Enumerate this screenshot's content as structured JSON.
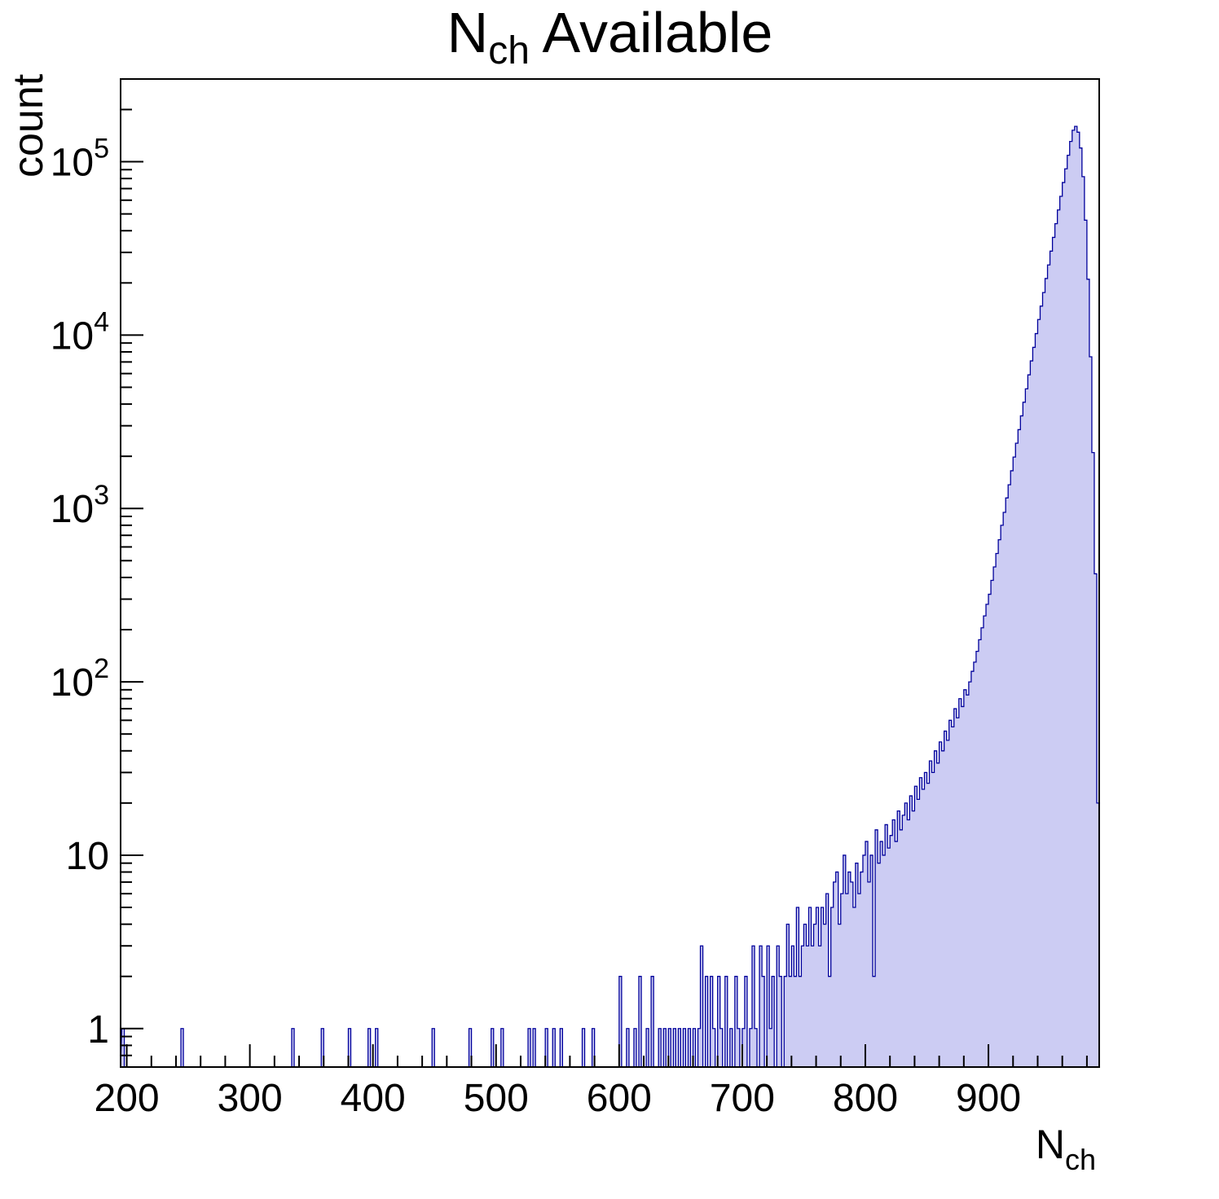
{
  "title": {
    "pre": "N",
    "sub": "ch",
    "post": " Available",
    "text": "N_ch Available"
  },
  "axes": {
    "x": {
      "label_pre": "N",
      "label_sub": "ch",
      "min": 195,
      "max": 990,
      "major_tick_values": [
        200,
        300,
        400,
        500,
        600,
        700,
        800,
        900
      ],
      "major_tick_labels": [
        "200",
        "300",
        "400",
        "500",
        "600",
        "700",
        "800",
        "900"
      ],
      "minor_step": 20
    },
    "y": {
      "label": "count",
      "scale": "log",
      "min": 0.6,
      "max": 300000,
      "major_ticks": [
        {
          "value": 1,
          "label": "1",
          "exp": null
        },
        {
          "value": 10,
          "label": "10",
          "exp": null
        },
        {
          "value": 100,
          "label": "10",
          "exp": "2"
        },
        {
          "value": 1000,
          "label": "10",
          "exp": "3"
        },
        {
          "value": 10000,
          "label": "10",
          "exp": "4"
        },
        {
          "value": 100000,
          "label": "10",
          "exp": "5"
        }
      ]
    }
  },
  "style": {
    "fill_color": "#ccccf3",
    "line_color": "#00009b",
    "frame_color": "#000000",
    "background": "#ffffff"
  },
  "chart_data": {
    "type": "bar",
    "subtype": "histogram",
    "title": "N_ch Available",
    "xlabel": "N_ch",
    "ylabel": "count",
    "yscale": "log",
    "xlim": [
      195,
      990
    ],
    "ylim": [
      0.6,
      300000
    ],
    "grid": false,
    "legend": "none",
    "bin_width": 2,
    "peak": {
      "x": 970,
      "count": 160000
    },
    "bins": [
      [
        196,
        1
      ],
      [
        244,
        1
      ],
      [
        334,
        1
      ],
      [
        358,
        1
      ],
      [
        380,
        1
      ],
      [
        396,
        1
      ],
      [
        402,
        1
      ],
      [
        448,
        1
      ],
      [
        478,
        1
      ],
      [
        496,
        1
      ],
      [
        504,
        1
      ],
      [
        526,
        1
      ],
      [
        530,
        1
      ],
      [
        540,
        1
      ],
      [
        546,
        1
      ],
      [
        552,
        1
      ],
      [
        570,
        1
      ],
      [
        578,
        1
      ],
      [
        600,
        2
      ],
      [
        606,
        1
      ],
      [
        612,
        1
      ],
      [
        616,
        2
      ],
      [
        622,
        1
      ],
      [
        626,
        2
      ],
      [
        632,
        1
      ],
      [
        636,
        1
      ],
      [
        640,
        1
      ],
      [
        644,
        1
      ],
      [
        648,
        1
      ],
      [
        652,
        1
      ],
      [
        656,
        1
      ],
      [
        660,
        1
      ],
      [
        664,
        1
      ],
      [
        666,
        3
      ],
      [
        670,
        2
      ],
      [
        674,
        2
      ],
      [
        676,
        1
      ],
      [
        680,
        2
      ],
      [
        682,
        1
      ],
      [
        686,
        2
      ],
      [
        690,
        1
      ],
      [
        694,
        2
      ],
      [
        696,
        1
      ],
      [
        700,
        1
      ],
      [
        702,
        2
      ],
      [
        706,
        1
      ],
      [
        708,
        3
      ],
      [
        710,
        1
      ],
      [
        714,
        3
      ],
      [
        716,
        2
      ],
      [
        720,
        3
      ],
      [
        722,
        1
      ],
      [
        724,
        2
      ],
      [
        728,
        3
      ],
      [
        730,
        2
      ],
      [
        734,
        2
      ],
      [
        736,
        4
      ],
      [
        738,
        2
      ],
      [
        740,
        3
      ],
      [
        742,
        2
      ],
      [
        744,
        5
      ],
      [
        746,
        2
      ],
      [
        748,
        3
      ],
      [
        750,
        4
      ],
      [
        752,
        3
      ],
      [
        754,
        5
      ],
      [
        756,
        3
      ],
      [
        758,
        4
      ],
      [
        760,
        5
      ],
      [
        762,
        3
      ],
      [
        764,
        5
      ],
      [
        766,
        4
      ],
      [
        768,
        6
      ],
      [
        770,
        2
      ],
      [
        772,
        5
      ],
      [
        774,
        7
      ],
      [
        776,
        8
      ],
      [
        778,
        4
      ],
      [
        780,
        6
      ],
      [
        782,
        10
      ],
      [
        784,
        6
      ],
      [
        786,
        8
      ],
      [
        788,
        7
      ],
      [
        790,
        5
      ],
      [
        792,
        9
      ],
      [
        794,
        6
      ],
      [
        796,
        8
      ],
      [
        798,
        10
      ],
      [
        800,
        12
      ],
      [
        802,
        7
      ],
      [
        804,
        10
      ],
      [
        806,
        2
      ],
      [
        808,
        14
      ],
      [
        810,
        9
      ],
      [
        812,
        12
      ],
      [
        814,
        10
      ],
      [
        816,
        15
      ],
      [
        818,
        11
      ],
      [
        820,
        13
      ],
      [
        822,
        16
      ],
      [
        824,
        12
      ],
      [
        826,
        18
      ],
      [
        828,
        14
      ],
      [
        830,
        17
      ],
      [
        832,
        20
      ],
      [
        834,
        16
      ],
      [
        836,
        22
      ],
      [
        838,
        18
      ],
      [
        840,
        25
      ],
      [
        842,
        21
      ],
      [
        844,
        28
      ],
      [
        846,
        24
      ],
      [
        848,
        30
      ],
      [
        850,
        26
      ],
      [
        852,
        35
      ],
      [
        854,
        30
      ],
      [
        856,
        40
      ],
      [
        858,
        34
      ],
      [
        860,
        45
      ],
      [
        862,
        40
      ],
      [
        864,
        52
      ],
      [
        866,
        46
      ],
      [
        868,
        60
      ],
      [
        870,
        55
      ],
      [
        872,
        70
      ],
      [
        874,
        62
      ],
      [
        876,
        80
      ],
      [
        878,
        72
      ],
      [
        880,
        90
      ],
      [
        882,
        84
      ],
      [
        884,
        100
      ],
      [
        886,
        115
      ],
      [
        888,
        130
      ],
      [
        890,
        150
      ],
      [
        892,
        175
      ],
      [
        894,
        205
      ],
      [
        896,
        240
      ],
      [
        898,
        280
      ],
      [
        900,
        320
      ],
      [
        902,
        385
      ],
      [
        904,
        460
      ],
      [
        906,
        550
      ],
      [
        908,
        660
      ],
      [
        910,
        800
      ],
      [
        912,
        950
      ],
      [
        914,
        1150
      ],
      [
        916,
        1370
      ],
      [
        918,
        1650
      ],
      [
        920,
        1980
      ],
      [
        922,
        2380
      ],
      [
        924,
        2850
      ],
      [
        926,
        3420
      ],
      [
        928,
        4100
      ],
      [
        930,
        4900
      ],
      [
        932,
        5900
      ],
      [
        934,
        7100
      ],
      [
        936,
        8500
      ],
      [
        938,
        10200
      ],
      [
        940,
        12300
      ],
      [
        942,
        14700
      ],
      [
        944,
        17600
      ],
      [
        946,
        21200
      ],
      [
        948,
        25400
      ],
      [
        950,
        30500
      ],
      [
        952,
        36600
      ],
      [
        954,
        43900
      ],
      [
        956,
        52700
      ],
      [
        958,
        63200
      ],
      [
        960,
        75900
      ],
      [
        962,
        91000
      ],
      [
        964,
        109000
      ],
      [
        966,
        131000
      ],
      [
        968,
        152000
      ],
      [
        970,
        160000
      ],
      [
        972,
        148000
      ],
      [
        974,
        120000
      ],
      [
        976,
        82000
      ],
      [
        978,
        46000
      ],
      [
        980,
        21000
      ],
      [
        982,
        7500
      ],
      [
        984,
        2100
      ],
      [
        986,
        420
      ],
      [
        988,
        20
      ]
    ]
  }
}
